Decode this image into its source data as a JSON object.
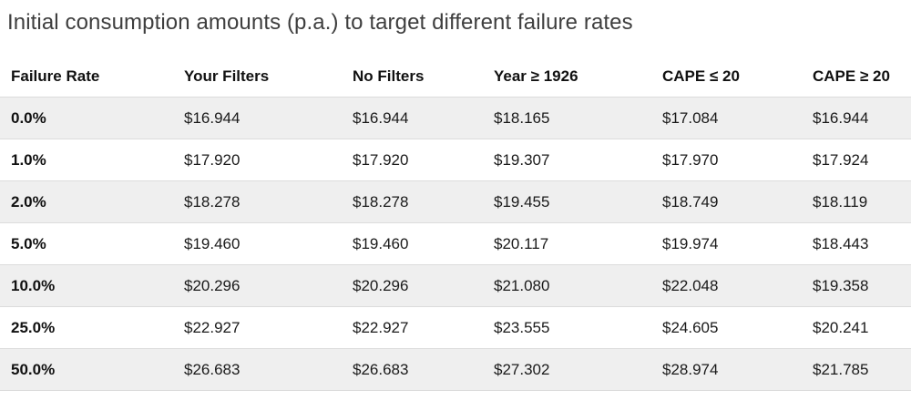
{
  "title": "Initial consumption amounts (p.a.) to target different failure rates",
  "colors": {
    "background": "#ffffff",
    "title_text": "#3e3e3e",
    "header_text": "#111111",
    "cell_text": "#1a1a1a",
    "stripe": "#efefef",
    "border": "#dcdcdc"
  },
  "chart_data": {
    "type": "table",
    "title": "Initial consumption amounts (p.a.) to target different failure rates",
    "columns": [
      "Failure Rate",
      "Your Filters",
      "No Filters",
      "Year ≥ 1926",
      "CAPE ≤ 20",
      "CAPE ≥ 20"
    ],
    "rows": [
      [
        "0.0%",
        "$16.944",
        "$16.944",
        "$18.165",
        "$17.084",
        "$16.944"
      ],
      [
        "1.0%",
        "$17.920",
        "$17.920",
        "$19.307",
        "$17.970",
        "$17.924"
      ],
      [
        "2.0%",
        "$18.278",
        "$18.278",
        "$19.455",
        "$18.749",
        "$18.119"
      ],
      [
        "5.0%",
        "$19.460",
        "$19.460",
        "$20.117",
        "$19.974",
        "$18.443"
      ],
      [
        "10.0%",
        "$20.296",
        "$20.296",
        "$21.080",
        "$22.048",
        "$19.358"
      ],
      [
        "25.0%",
        "$22.927",
        "$22.927",
        "$23.555",
        "$24.605",
        "$20.241"
      ],
      [
        "50.0%",
        "$26.683",
        "$26.683",
        "$27.302",
        "$28.974",
        "$21.785"
      ]
    ],
    "layout": {
      "striped_rows": "odd rows (1st, 3rd, 5th, 7th) have gray background",
      "grid": "horizontal row dividers only",
      "alignment": "left"
    }
  }
}
